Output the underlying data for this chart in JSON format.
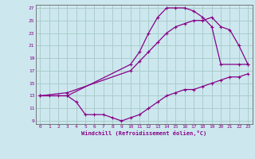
{
  "xlabel": "Windchill (Refroidissement éolien,°C)",
  "bg_color": "#cce8ee",
  "grid_color": "#aacccc",
  "line_color": "#880088",
  "xlim": [
    -0.5,
    23.5
  ],
  "ylim": [
    8.5,
    27.5
  ],
  "xticks": [
    0,
    1,
    2,
    3,
    4,
    5,
    6,
    7,
    8,
    9,
    10,
    11,
    12,
    13,
    14,
    15,
    16,
    17,
    18,
    19,
    20,
    21,
    22,
    23
  ],
  "yticks": [
    9,
    11,
    13,
    15,
    17,
    19,
    21,
    23,
    25,
    27
  ],
  "line1_x": [
    0,
    1,
    2,
    3,
    4,
    5,
    6,
    7,
    8,
    9,
    10,
    11,
    12,
    13,
    14,
    15,
    16,
    17,
    18,
    19,
    20,
    21,
    22,
    23
  ],
  "line1_y": [
    13,
    13,
    13,
    13,
    12,
    10,
    10,
    10,
    9.5,
    9,
    9.5,
    10,
    11,
    12,
    13,
    13.5,
    14,
    14,
    14.5,
    15,
    15.5,
    16,
    16,
    16.5
  ],
  "line2_x": [
    0,
    3,
    10,
    11,
    12,
    13,
    14,
    15,
    16,
    17,
    18,
    19,
    20,
    22,
    23
  ],
  "line2_y": [
    13,
    13,
    18,
    20,
    23,
    25.5,
    27,
    27,
    27,
    26.5,
    25.5,
    24,
    18,
    18,
    18
  ],
  "line3_x": [
    0,
    3,
    10,
    11,
    12,
    13,
    14,
    15,
    16,
    17,
    18,
    19,
    20,
    21,
    22,
    23
  ],
  "line3_y": [
    13,
    13.5,
    17,
    18.5,
    20,
    21.5,
    23,
    24,
    24.5,
    25,
    25,
    25.5,
    24,
    23.5,
    21,
    18
  ]
}
